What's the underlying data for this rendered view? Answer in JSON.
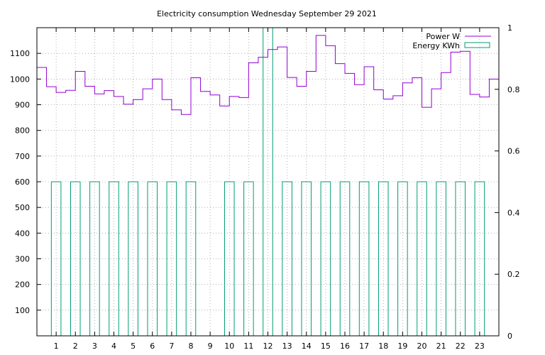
{
  "chart_data": {
    "type": "step",
    "title": "Electricity consumption Wednesday September 29 2021",
    "x_ticks": [
      1,
      2,
      3,
      4,
      5,
      6,
      7,
      8,
      9,
      10,
      11,
      12,
      13,
      14,
      15,
      16,
      17,
      18,
      19,
      20,
      21,
      22,
      23
    ],
    "xlim": [
      0,
      24
    ],
    "y_left": {
      "ylim": [
        0,
        1200
      ],
      "ticks": [
        100,
        200,
        300,
        400,
        500,
        600,
        700,
        800,
        900,
        1000,
        1100
      ]
    },
    "y_right": {
      "ylim": [
        0,
        1
      ],
      "ticks": [
        "0",
        "0.2",
        "0.4",
        "0.6",
        "0.8",
        "1"
      ],
      "tick_values": [
        0,
        0.2,
        0.4,
        0.6,
        0.8,
        1.0
      ]
    },
    "grid": true,
    "legend_position": "top-right",
    "series": [
      {
        "name": "Power W",
        "kind": "step",
        "color": "#9400d3",
        "axis": "left",
        "x": [
          0,
          0.5,
          1,
          1.5,
          2,
          2.5,
          3,
          3.5,
          4,
          4.5,
          5,
          5.5,
          6,
          6.5,
          7,
          7.5,
          8,
          8.5,
          9,
          9.5,
          10,
          10.5,
          11,
          11.5,
          12,
          12.5,
          13,
          13.5,
          14,
          14.5,
          15,
          15.5,
          16,
          16.5,
          17,
          17.5,
          18,
          18.5,
          19,
          19.5,
          20,
          20.5,
          21,
          21.5,
          22,
          22.5,
          23,
          23.5,
          24
        ],
        "values": [
          1045,
          970,
          948,
          956,
          1030,
          972,
          942,
          955,
          932,
          902,
          920,
          962,
          1000,
          920,
          880,
          862,
          1005,
          952,
          938,
          895,
          932,
          928,
          1063,
          1085,
          1115,
          1125,
          1006,
          972,
          1030,
          1170,
          1130,
          1060,
          1022,
          978,
          1048,
          958,
          922,
          935,
          985,
          1005,
          890,
          962,
          1025,
          1105,
          1108,
          940,
          930,
          1000,
          1000
        ]
      },
      {
        "name": "Energy KWh",
        "kind": "impulse-box",
        "color": "#009e73",
        "axis": "right",
        "box_width": 0.5,
        "x": [
          1,
          2,
          3,
          4,
          5,
          6,
          7,
          8,
          10,
          11,
          12,
          13,
          14,
          15,
          16,
          17,
          18,
          19,
          20,
          21,
          22,
          23
        ],
        "values": [
          0.5,
          0.5,
          0.5,
          0.5,
          0.5,
          0.5,
          0.5,
          0.5,
          0.5,
          0.5,
          1.0,
          0.5,
          0.5,
          0.5,
          0.5,
          0.5,
          0.5,
          0.5,
          0.5,
          0.5,
          0.5,
          0.5
        ]
      }
    ]
  }
}
